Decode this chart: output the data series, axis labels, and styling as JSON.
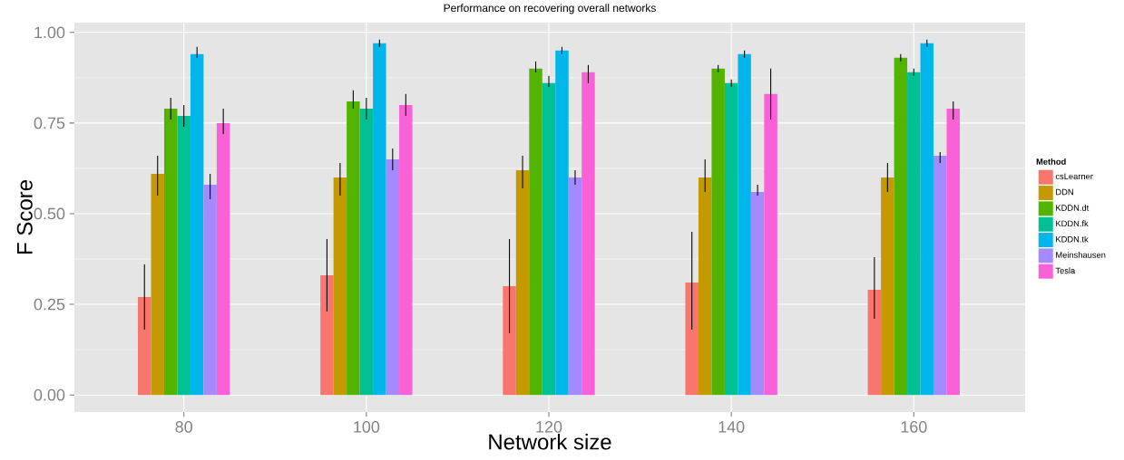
{
  "chart_data": {
    "type": "bar",
    "title": "Performance on recovering overall networks",
    "xlabel": "Network size",
    "ylabel": "F Score",
    "legend_title": "Method",
    "categories": [
      "80",
      "100",
      "120",
      "140",
      "160"
    ],
    "ylim": [
      -0.047,
      1.027
    ],
    "yticks": [
      {
        "value": 0,
        "label": "0.00"
      },
      {
        "value": 0.25,
        "label": "0.25"
      },
      {
        "value": 0.5,
        "label": "0.50"
      },
      {
        "value": 0.75,
        "label": "0.75"
      },
      {
        "value": 1,
        "label": "1.00"
      }
    ],
    "grid": true,
    "legend": "right",
    "series": [
      {
        "name": "csLearner",
        "color": "#f8766d",
        "values": [
          0.27,
          0.33,
          0.3,
          0.31,
          0.29
        ],
        "errors": [
          [
            0.18,
            0.36
          ],
          [
            0.23,
            0.43
          ],
          [
            0.17,
            0.43
          ],
          [
            0.18,
            0.45
          ],
          [
            0.21,
            0.38
          ]
        ]
      },
      {
        "name": "DDN",
        "color": "#c49a00",
        "values": [
          0.61,
          0.6,
          0.62,
          0.6,
          0.6
        ],
        "errors": [
          [
            0.55,
            0.66
          ],
          [
            0.55,
            0.64
          ],
          [
            0.57,
            0.66
          ],
          [
            0.56,
            0.65
          ],
          [
            0.56,
            0.64
          ]
        ]
      },
      {
        "name": "KDDN.dt",
        "color": "#53b400",
        "values": [
          0.79,
          0.81,
          0.9,
          0.9,
          0.93
        ],
        "errors": [
          [
            0.76,
            0.82
          ],
          [
            0.79,
            0.84
          ],
          [
            0.89,
            0.92
          ],
          [
            0.89,
            0.91
          ],
          [
            0.92,
            0.94
          ]
        ]
      },
      {
        "name": "KDDN.fk",
        "color": "#00c094",
        "values": [
          0.77,
          0.79,
          0.86,
          0.86,
          0.89
        ],
        "errors": [
          [
            0.74,
            0.8
          ],
          [
            0.76,
            0.82
          ],
          [
            0.85,
            0.88
          ],
          [
            0.85,
            0.87
          ],
          [
            0.88,
            0.9
          ]
        ]
      },
      {
        "name": "KDDN.tk",
        "color": "#00b6eb",
        "values": [
          0.94,
          0.97,
          0.95,
          0.94,
          0.97
        ],
        "errors": [
          [
            0.93,
            0.96
          ],
          [
            0.96,
            0.98
          ],
          [
            0.94,
            0.96
          ],
          [
            0.93,
            0.95
          ],
          [
            0.96,
            0.98
          ]
        ]
      },
      {
        "name": "Meinshausen",
        "color": "#a58aff",
        "values": [
          0.58,
          0.65,
          0.6,
          0.56,
          0.66
        ],
        "errors": [
          [
            0.54,
            0.61
          ],
          [
            0.62,
            0.68
          ],
          [
            0.58,
            0.62
          ],
          [
            0.55,
            0.58
          ],
          [
            0.64,
            0.67
          ]
        ]
      },
      {
        "name": "Tesla",
        "color": "#fb61d7",
        "values": [
          0.75,
          0.8,
          0.89,
          0.83,
          0.79
        ],
        "errors": [
          [
            0.72,
            0.79
          ],
          [
            0.77,
            0.83
          ],
          [
            0.86,
            0.91
          ],
          [
            0.76,
            0.9
          ],
          [
            0.76,
            0.81
          ]
        ]
      }
    ]
  }
}
